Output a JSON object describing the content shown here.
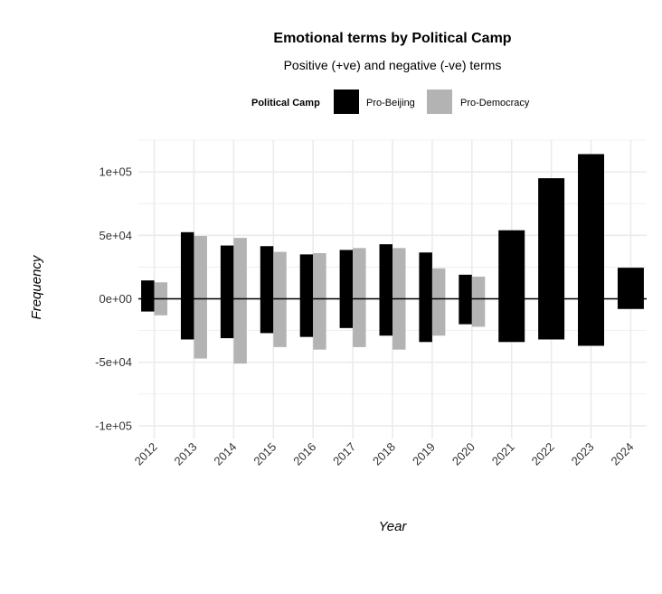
{
  "chart_data": {
    "type": "bar",
    "title": "Emotional terms by Political Camp",
    "subtitle": "Positive (+ve) and negative (-ve) terms",
    "xlabel": "Year",
    "ylabel": "Frequency",
    "legend_title": "Political Camp",
    "legend_position": "top",
    "grid": true,
    "ylim": [
      -110000,
      125000
    ],
    "y_ticks": [
      {
        "value": 100000,
        "label": "1e+05"
      },
      {
        "value": 50000,
        "label": "5e+04"
      },
      {
        "value": 0,
        "label": "0e+00"
      },
      {
        "value": -50000,
        "label": "-5e+04"
      },
      {
        "value": -100000,
        "label": "-1e+05"
      }
    ],
    "categories": [
      "2012",
      "2013",
      "2014",
      "2015",
      "2016",
      "2017",
      "2018",
      "2019",
      "2020",
      "2021",
      "2022",
      "2023",
      "2024"
    ],
    "series": [
      {
        "name": "Pro-Beijing",
        "color": "#000000",
        "positive": [
          14500,
          52500,
          42000,
          41500,
          35000,
          38500,
          43000,
          36500,
          19000,
          54000,
          95000,
          114000,
          24500
        ],
        "negative": [
          -10000,
          -32000,
          -31000,
          -27000,
          -30000,
          -23000,
          -29000,
          -34000,
          -20000,
          -34000,
          -32000,
          -37000,
          -8000
        ]
      },
      {
        "name": "Pro-Democracy",
        "color": "#b3b3b3",
        "positive": [
          13000,
          49500,
          48000,
          37000,
          36000,
          40000,
          40000,
          24000,
          17500,
          null,
          null,
          null,
          null
        ],
        "negative": [
          -13000,
          -47000,
          -51000,
          -38000,
          -40000,
          -38000,
          -40000,
          -29000,
          -22000,
          null,
          null,
          null,
          null
        ]
      }
    ]
  }
}
